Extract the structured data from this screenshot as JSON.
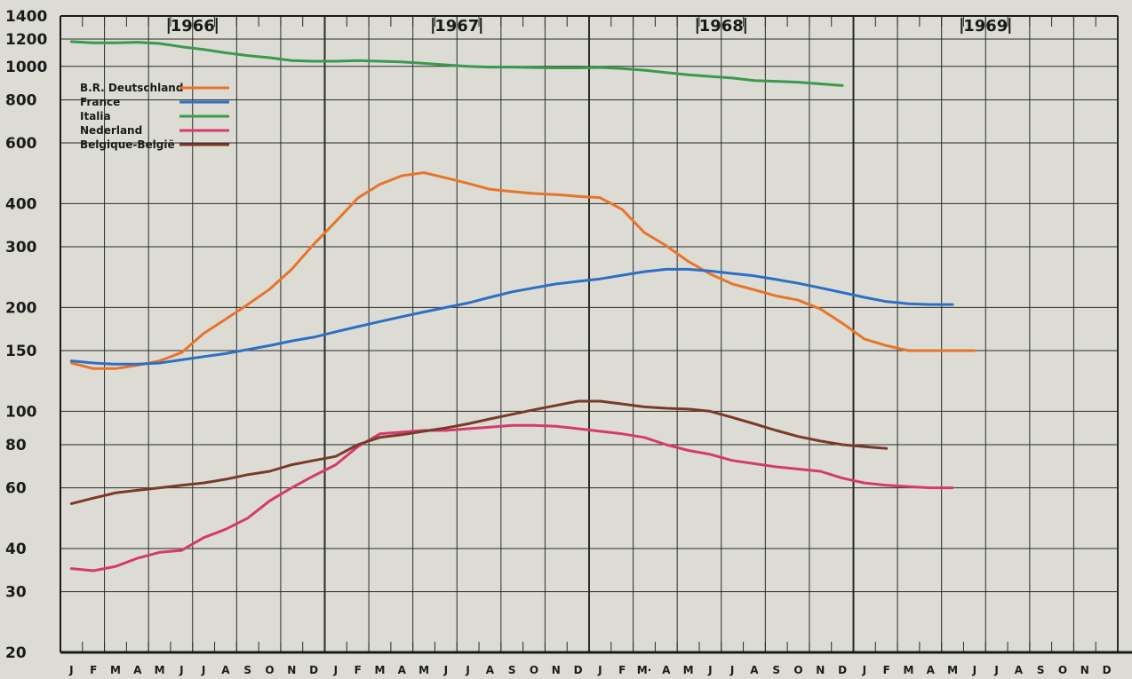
{
  "chart_data": {
    "type": "line",
    "y_scale": "log",
    "ylim": [
      20,
      1400
    ],
    "y_ticks": [
      20,
      30,
      40,
      60,
      80,
      100,
      150,
      200,
      300,
      400,
      600,
      800,
      1000,
      1200,
      1400
    ],
    "years": [
      "1966",
      "1967",
      "1968",
      "1969"
    ],
    "month_labels": [
      "J",
      "F",
      "M",
      "A",
      "M",
      "J",
      "J",
      "A",
      "S",
      "O",
      "N",
      "D",
      "J",
      "F",
      "M",
      "A",
      "M",
      "J",
      "J",
      "A",
      "S",
      "O",
      "N",
      "D",
      "J",
      "F",
      "M·",
      "A",
      "M",
      "J",
      "J",
      "A",
      "S",
      "O",
      "N",
      "D",
      "J",
      "F",
      "M",
      "A",
      "M",
      "J",
      "J",
      "A",
      "S",
      "O",
      "N",
      "D"
    ],
    "x": [
      "1966-01",
      "1966-02",
      "1966-03",
      "1966-04",
      "1966-05",
      "1966-06",
      "1966-07",
      "1966-08",
      "1966-09",
      "1966-10",
      "1966-11",
      "1966-12",
      "1967-01",
      "1967-02",
      "1967-03",
      "1967-04",
      "1967-05",
      "1967-06",
      "1967-07",
      "1967-08",
      "1967-09",
      "1967-10",
      "1967-11",
      "1967-12",
      "1968-01",
      "1968-02",
      "1968-03",
      "1968-04",
      "1968-05",
      "1968-06",
      "1968-07",
      "1968-08",
      "1968-09",
      "1968-10",
      "1968-11",
      "1968-12",
      "1969-01",
      "1969-02",
      "1969-03",
      "1969-04",
      "1969-05",
      "1969-06",
      "1969-07",
      "1969-08",
      "1969-09",
      "1969-10",
      "1969-11",
      "1969-12"
    ],
    "series": [
      {
        "name": "B.R. Deutschland",
        "color": "#e8742a",
        "values": [
          138,
          133,
          133,
          136,
          140,
          148,
          168,
          185,
          204,
          226,
          258,
          305,
          355,
          415,
          455,
          482,
          492,
          475,
          458,
          440,
          434,
          428,
          425,
          420,
          416,
          385,
          330,
          302,
          272,
          250,
          234,
          225,
          216,
          210,
          198,
          180,
          162,
          155,
          150,
          150,
          150,
          150,
          null,
          null,
          null,
          null,
          null,
          null
        ]
      },
      {
        "name": "France",
        "color": "#2e6ec4",
        "values": [
          140,
          138,
          137,
          137,
          138,
          141,
          144,
          147,
          151,
          155,
          160,
          164,
          170,
          176,
          182,
          188,
          194,
          200,
          206,
          214,
          222,
          228,
          234,
          238,
          242,
          248,
          254,
          258,
          258,
          255,
          251,
          247,
          241,
          235,
          228,
          221,
          214,
          208,
          205,
          204,
          204,
          null,
          null,
          null,
          null,
          null,
          null,
          null
        ]
      },
      {
        "name": "Italia",
        "color": "#3a9a4c",
        "values": [
          1180,
          1170,
          1170,
          1175,
          1165,
          1140,
          1120,
          1095,
          1075,
          1060,
          1040,
          1035,
          1035,
          1040,
          1035,
          1030,
          1020,
          1010,
          1000,
          995,
          995,
          992,
          990,
          990,
          993,
          985,
          975,
          960,
          945,
          935,
          925,
          910,
          905,
          900,
          890,
          880,
          null,
          null,
          null,
          null,
          null,
          null,
          null,
          null,
          null,
          null,
          null,
          null
        ]
      },
      {
        "name": "Nederland",
        "color": "#d63a6c",
        "values": [
          35,
          34.5,
          35.5,
          37.5,
          39,
          39.5,
          43,
          45.5,
          49,
          55,
          60,
          65,
          70,
          79,
          86,
          87,
          88,
          88,
          89,
          90,
          91,
          91,
          90.5,
          89,
          87.5,
          86,
          84,
          80,
          77,
          75,
          72,
          70.5,
          69,
          68,
          67,
          64,
          62,
          61,
          60.5,
          60,
          60,
          null,
          null,
          null,
          null,
          null,
          null,
          null
        ]
      },
      {
        "name": "Belgique-België",
        "color": "#7a3a28",
        "values": [
          54,
          56,
          58,
          59,
          60,
          61,
          62,
          63.5,
          65.5,
          67,
          70,
          72,
          74,
          80,
          84,
          85.5,
          87.5,
          89.5,
          92,
          95,
          98,
          101,
          104,
          107,
          107,
          105,
          103,
          102,
          101.5,
          100,
          96,
          92,
          88,
          84.5,
          82,
          80,
          79,
          78,
          null,
          null,
          null,
          null,
          null,
          null,
          null,
          null,
          null,
          null
        ]
      }
    ]
  }
}
